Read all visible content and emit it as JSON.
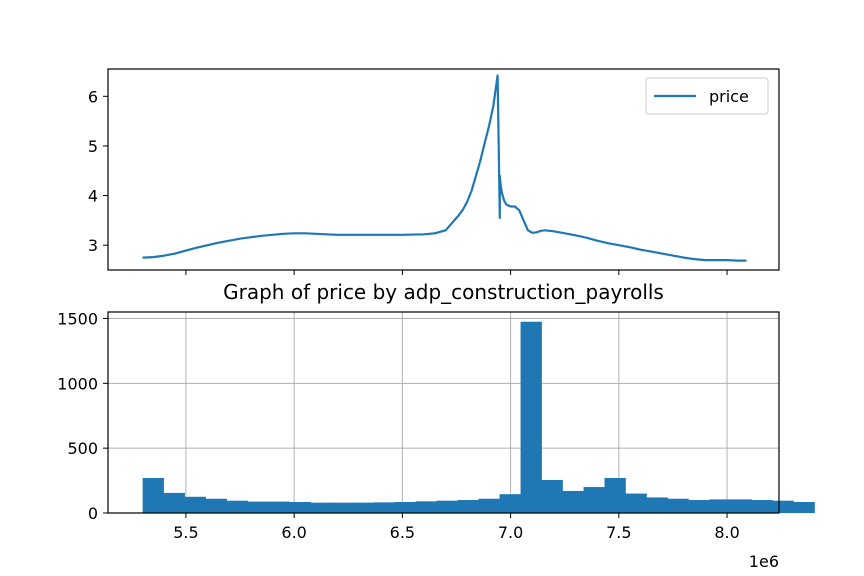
{
  "chart_data": [
    {
      "type": "line",
      "title": "",
      "xlabel": "",
      "ylabel": "",
      "xlim": [
        5140000,
        8240000
      ],
      "ylim": [
        2.5,
        6.55
      ],
      "x_ticks": [
        5500000,
        6000000,
        6500000,
        7000000,
        7500000,
        8000000
      ],
      "y_ticks": [
        3,
        4,
        5,
        6
      ],
      "y_tick_labels": [
        "3",
        "4",
        "5",
        "6"
      ],
      "grid": false,
      "legend": {
        "placement": "top-right",
        "entries": [
          "price"
        ]
      },
      "series": [
        {
          "name": "price",
          "color": "#1f77b4",
          "x": [
            5300000,
            5350000,
            5400000,
            5450000,
            5500000,
            5550000,
            5600000,
            5650000,
            5700000,
            5750000,
            5800000,
            5850000,
            5900000,
            5950000,
            6000000,
            6050000,
            6100000,
            6150000,
            6200000,
            6300000,
            6400000,
            6500000,
            6600000,
            6650000,
            6700000,
            6720000,
            6740000,
            6760000,
            6780000,
            6800000,
            6820000,
            6840000,
            6860000,
            6880000,
            6900000,
            6920000,
            6940000,
            6945000,
            6950000,
            6950000,
            6952000,
            6955000,
            6960000,
            6970000,
            6980000,
            7000000,
            7020000,
            7040000,
            7060000,
            7080000,
            7100000,
            7120000,
            7140000,
            7160000,
            7200000,
            7250000,
            7300000,
            7350000,
            7400000,
            7450000,
            7500000,
            7550000,
            7600000,
            7650000,
            7700000,
            7750000,
            7800000,
            7850000,
            7900000,
            7950000,
            8000000,
            8050000,
            8090000
          ],
          "y": [
            2.75,
            2.76,
            2.79,
            2.83,
            2.89,
            2.95,
            3.0,
            3.05,
            3.09,
            3.13,
            3.16,
            3.19,
            3.21,
            3.23,
            3.24,
            3.24,
            3.23,
            3.22,
            3.21,
            3.21,
            3.21,
            3.21,
            3.22,
            3.24,
            3.3,
            3.4,
            3.5,
            3.6,
            3.72,
            3.88,
            4.1,
            4.4,
            4.7,
            5.05,
            5.4,
            5.8,
            6.42,
            5.0,
            3.55,
            4.4,
            4.3,
            4.18,
            4.05,
            3.9,
            3.82,
            3.78,
            3.78,
            3.7,
            3.5,
            3.3,
            3.25,
            3.26,
            3.29,
            3.3,
            3.28,
            3.24,
            3.2,
            3.15,
            3.09,
            3.04,
            3.0,
            2.96,
            2.91,
            2.87,
            2.83,
            2.79,
            2.75,
            2.72,
            2.7,
            2.7,
            2.7,
            2.69,
            2.69
          ]
        }
      ]
    },
    {
      "type": "bar",
      "title": "Graph of price by adp_construction_payrolls",
      "xlabel": "",
      "ylabel": "",
      "xlim": [
        5140000,
        8240000
      ],
      "ylim": [
        0,
        1550
      ],
      "x_ticks": [
        5500000,
        6000000,
        6500000,
        7000000,
        7500000,
        8000000
      ],
      "x_tick_labels": [
        "5.5",
        "6.0",
        "6.5",
        "7.0",
        "7.5",
        "8.0"
      ],
      "x_offset_label": "1e6",
      "y_ticks": [
        0,
        500,
        1000,
        1500
      ],
      "y_tick_labels": [
        "0",
        "500",
        "1000",
        "1500"
      ],
      "grid": true,
      "bin_start": 5300000,
      "bin_width": 97000,
      "values": [
        270,
        155,
        125,
        110,
        95,
        88,
        88,
        85,
        80,
        80,
        80,
        82,
        85,
        90,
        95,
        100,
        110,
        145,
        1475,
        255,
        170,
        200,
        270,
        150,
        120,
        110,
        100,
        105,
        105,
        100,
        95,
        85
      ],
      "color": "#1f77b4"
    }
  ]
}
